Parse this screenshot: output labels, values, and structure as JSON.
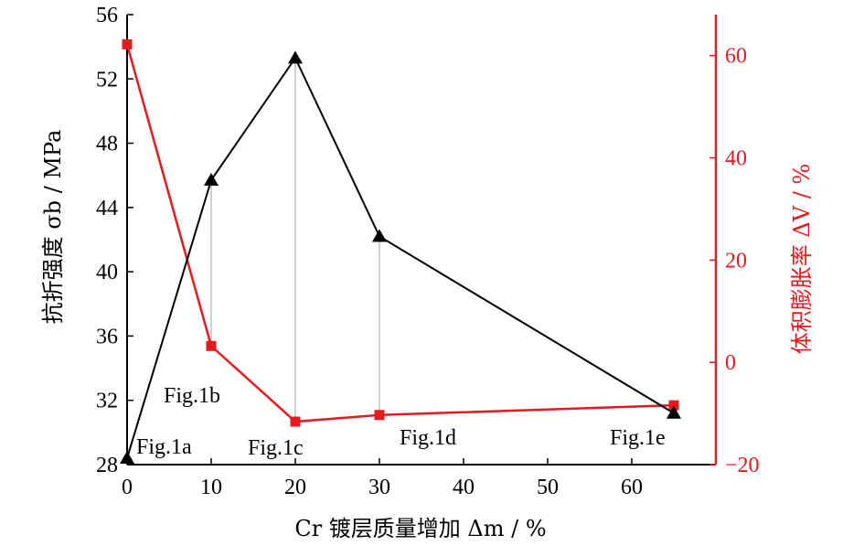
{
  "chart_data": {
    "type": "line",
    "title": "",
    "xlabel": "Cr 镀层质量增加 Δm / %",
    "ylabel_left": "抗折强度 σb / MPa",
    "ylabel_right": "体积膨胀率 ΔV / %",
    "x_ticks": [
      "0",
      "10",
      "20",
      "30",
      "40",
      "50",
      "60"
    ],
    "y_left_ticks": [
      "28",
      "32",
      "36",
      "40",
      "44",
      "48",
      "52",
      "56"
    ],
    "y_right_ticks": [
      "−20",
      "0",
      "20",
      "40",
      "60"
    ],
    "xlim": [
      0,
      70
    ],
    "ylim_left": [
      28,
      56
    ],
    "ylim_right": [
      -20,
      68
    ],
    "grid": false,
    "colors": {
      "strength": "#000000",
      "expansion": "#e8191c",
      "dropline": "#a0a0a0"
    },
    "series": [
      {
        "key": "strength",
        "axis": "left",
        "marker": "triangle",
        "x": [
          0,
          10,
          20,
          30,
          65
        ],
        "values": [
          28.4,
          45.7,
          53.3,
          42.2,
          31.2
        ]
      },
      {
        "key": "expansion",
        "axis": "right",
        "marker": "square",
        "x": [
          0,
          10,
          20,
          30,
          65
        ],
        "values": [
          62.2,
          3.2,
          -11.6,
          -10.3,
          -8.4
        ]
      }
    ],
    "annotations": [
      {
        "text": "Fig.1a",
        "x": 0
      },
      {
        "text": "Fig.1b",
        "x": 10
      },
      {
        "text": "Fig.1c",
        "x": 20
      },
      {
        "text": "Fig.1d",
        "x": 30
      },
      {
        "text": "Fig.1e",
        "x": 65
      }
    ]
  }
}
